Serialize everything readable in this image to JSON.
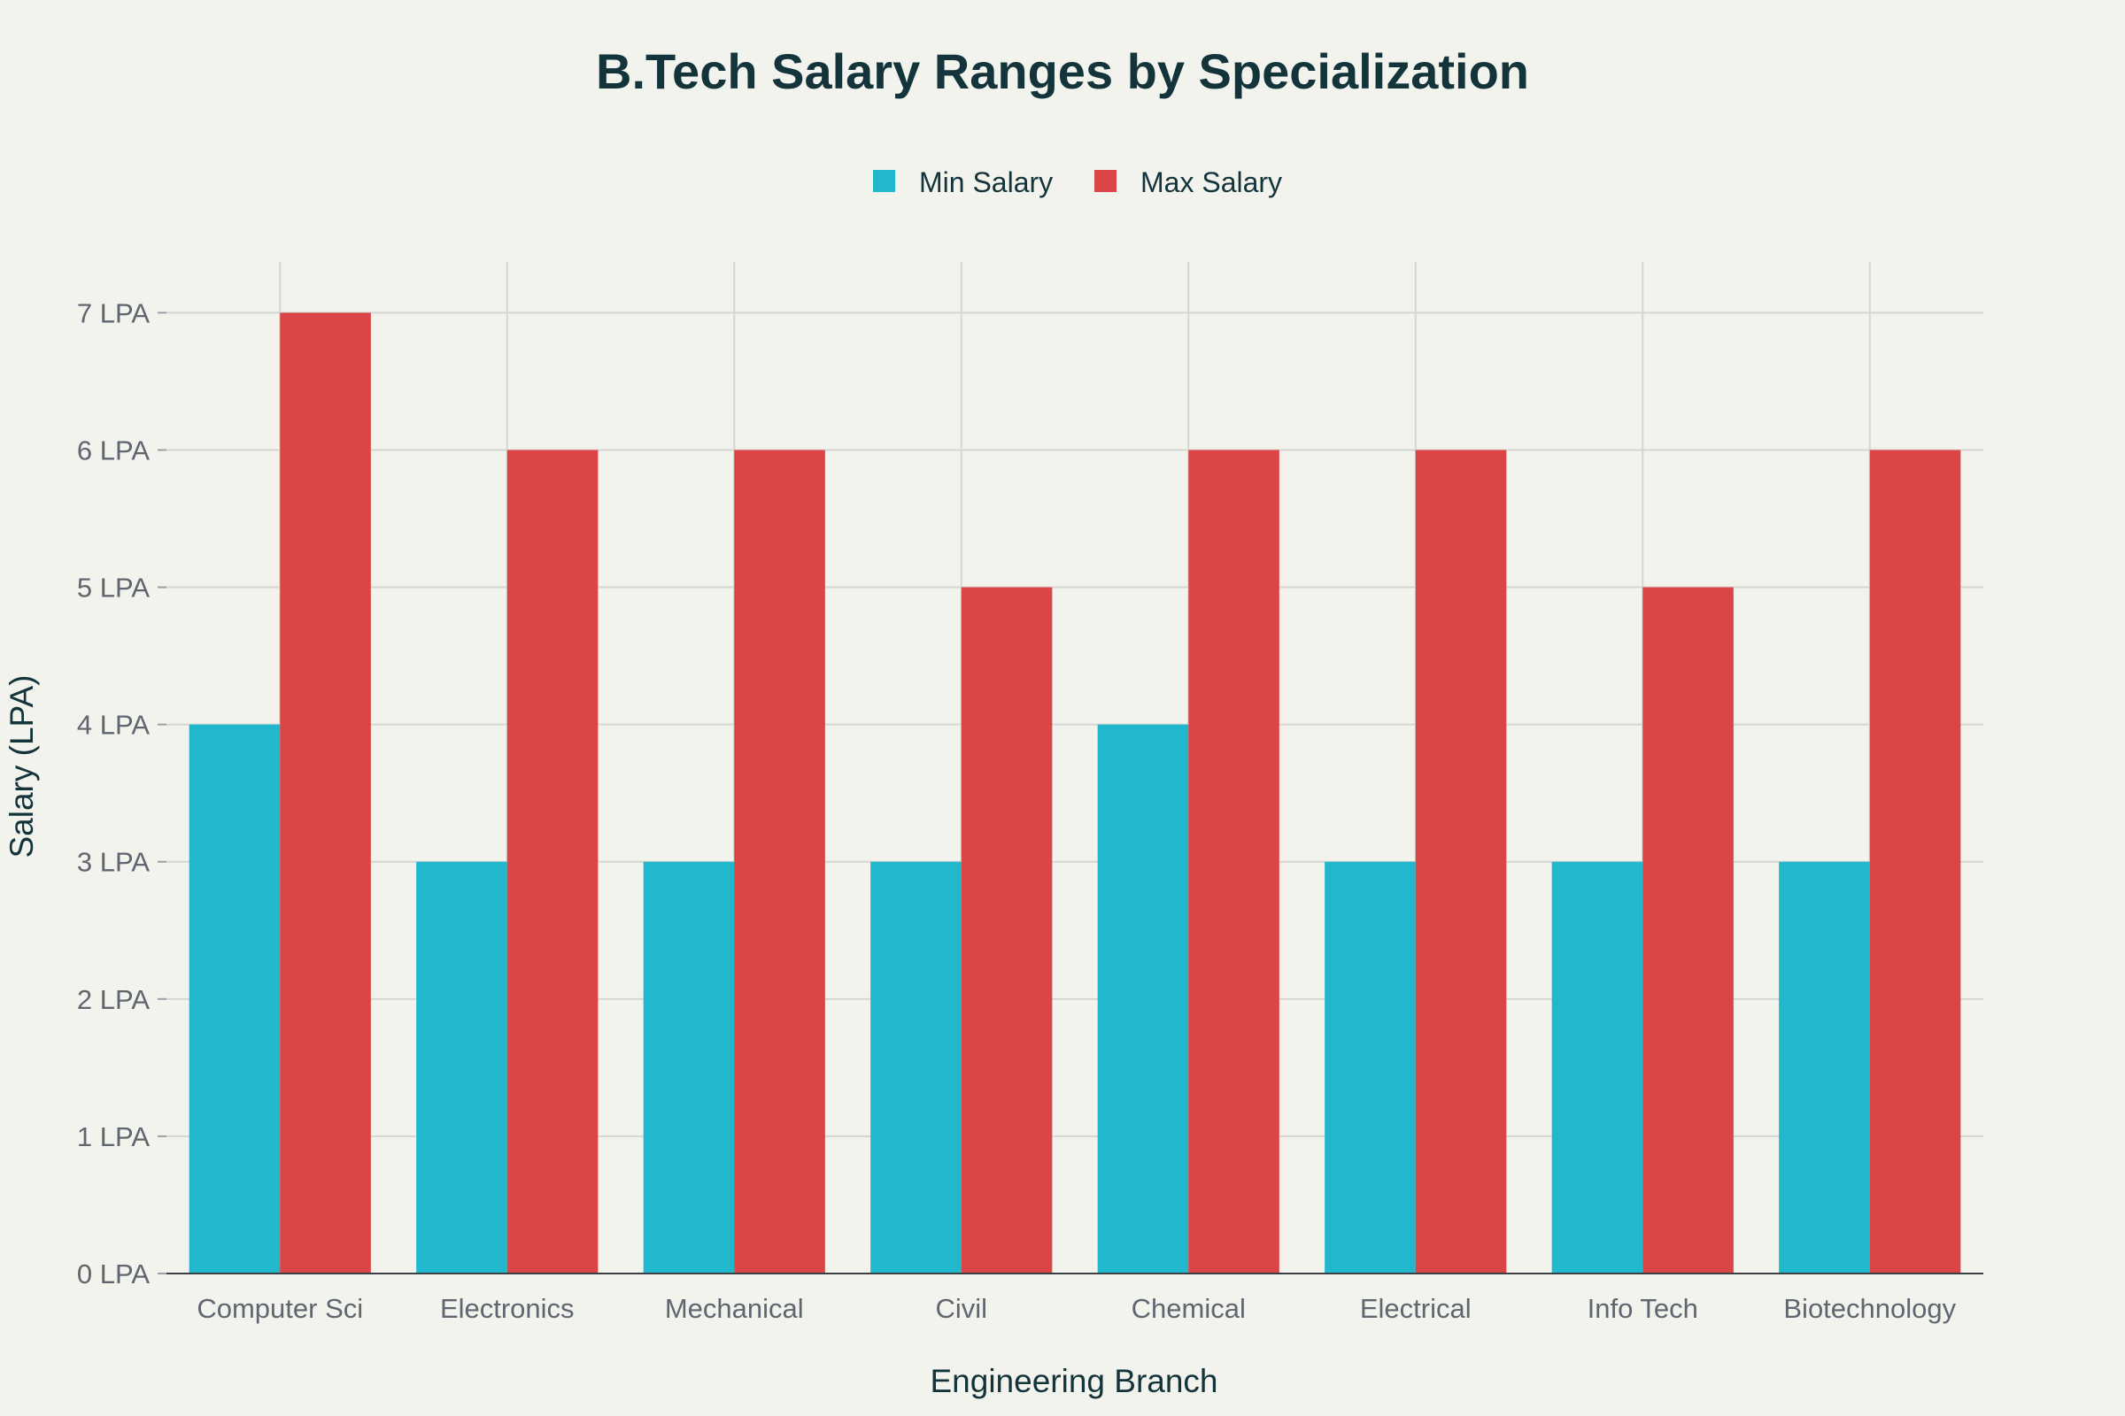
{
  "chart_data": {
    "type": "bar",
    "title": "B.Tech Salary Ranges by Specialization",
    "xlabel": "Engineering Branch",
    "ylabel": "Salary (LPA)",
    "categories": [
      "Computer Sci",
      "Electronics",
      "Mechanical",
      "Civil",
      "Chemical",
      "Electrical",
      "Info Tech",
      "Biotechnology"
    ],
    "series": [
      {
        "name": "Min Salary",
        "color": "#21b8cd",
        "values": [
          4,
          3,
          3,
          3,
          4,
          3,
          3,
          3
        ]
      },
      {
        "name": "Max Salary",
        "color": "#db4546",
        "values": [
          7,
          6,
          6,
          5,
          6,
          6,
          5,
          6
        ]
      }
    ],
    "ylim": [
      0,
      7.37
    ],
    "yticks": [
      0,
      1,
      2,
      3,
      4,
      5,
      6,
      7
    ],
    "ytick_labels": [
      "0 LPA",
      "1 LPA",
      "2 LPA",
      "3 LPA",
      "4 LPA",
      "5 LPA",
      "6 LPA",
      "7 LPA"
    ],
    "grid": true,
    "legend_position": "top-center"
  }
}
